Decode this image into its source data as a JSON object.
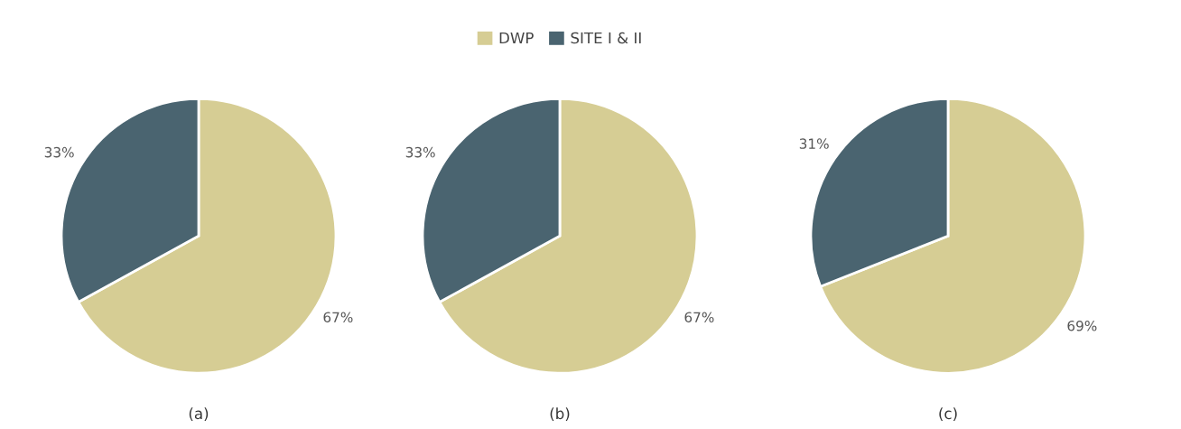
{
  "chart_data": [
    {
      "type": "pie",
      "categories": [
        "DWP",
        "SITE I & II"
      ],
      "values": [
        67,
        33
      ],
      "colors": [
        "#d6cd94",
        "#4a6470"
      ],
      "value_labels": [
        "67%",
        "33%"
      ],
      "xlabel": "(a)",
      "legend": "top"
    },
    {
      "type": "pie",
      "categories": [
        null,
        null
      ],
      "values": [
        67,
        33
      ],
      "colors": [
        "#d6cd94",
        "#4a6470"
      ],
      "value_labels": [
        "67%",
        "33%"
      ],
      "xlabel": "(b)"
    },
    {
      "type": "pie",
      "categories": [
        null,
        null
      ],
      "values": [
        69,
        31
      ],
      "colors": [
        "#d6cd94",
        "#4a6470"
      ],
      "value_labels": [
        "69%",
        "31%"
      ],
      "xlabel": "(c)"
    }
  ]
}
